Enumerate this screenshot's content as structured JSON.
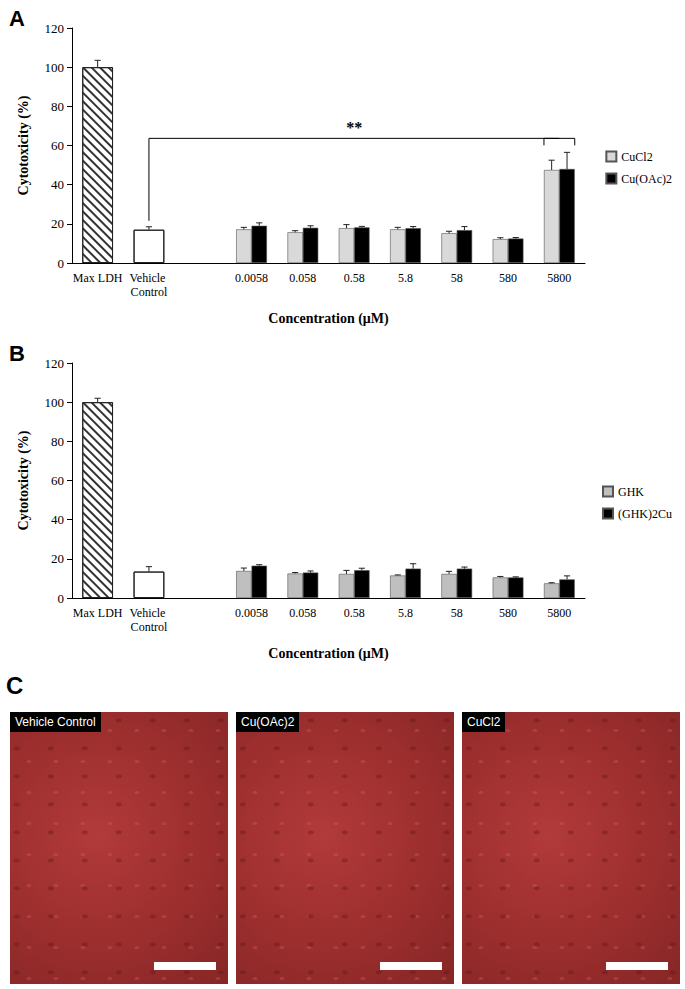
{
  "chart_data": [
    {
      "type": "bar",
      "title": "A",
      "x_label": "Concentration (μM)",
      "y_label": "Cytotoxicity (%)",
      "categories": [
        "Max LDH",
        "Vehicle Control",
        null,
        "0.0058",
        "0.058",
        "0.58",
        "5.8",
        "58",
        "580",
        "5800"
      ],
      "series": [
        {
          "color": "#ffffff",
          "values": [
            100,
            17,
            null,
            null,
            null,
            null,
            null,
            null,
            null,
            null
          ],
          "errors": [
            3.5,
            1.5,
            null,
            null,
            null,
            null,
            null,
            null,
            null,
            null
          ]
        },
        {
          "name": "CuCl2",
          "color": "#d9d9d9",
          "values": [
            null,
            null,
            null,
            17.2,
            15.7,
            17.8,
            17.2,
            15.2,
            12.2,
            47.5
          ],
          "errors": [
            null,
            null,
            null,
            1.0,
            0.8,
            1.8,
            1.0,
            1.0,
            0.7,
            5.0
          ]
        },
        {
          "name": "Cu(OAc)2",
          "color": "#000000",
          "values": [
            null,
            null,
            null,
            19.0,
            18.0,
            18.2,
            17.8,
            16.8,
            12.5,
            48.0
          ],
          "errors": [
            null,
            null,
            null,
            1.5,
            1.0,
            0.5,
            0.8,
            1.8,
            0.5,
            8.5
          ]
        }
      ],
      "ylim": [
        0,
        120
      ],
      "yticks": [
        0,
        20,
        40,
        60,
        80,
        100,
        120
      ],
      "grid": false,
      "legend": "right",
      "annotations": [
        {
          "text": "**",
          "from": "Vehicle Control",
          "to": "5800"
        }
      ]
    },
    {
      "type": "bar",
      "title": "B",
      "x_label": "Concentration (μM)",
      "y_label": "Cytotoxicity (%)",
      "categories": [
        "Max LDH",
        "Vehicle Control",
        null,
        "0.0058",
        "0.058",
        "0.58",
        "5.8",
        "58",
        "580",
        "5800"
      ],
      "series": [
        {
          "color": "#ffffff",
          "values": [
            100,
            13.5,
            null,
            null,
            null,
            null,
            null,
            null,
            null,
            null
          ],
          "errors": [
            2.0,
            2.5,
            null,
            null,
            null,
            null,
            null,
            null,
            null,
            null
          ]
        },
        {
          "name": "GHK",
          "color": "#bfbfbf",
          "values": [
            null,
            null,
            null,
            13.8,
            12.5,
            12.3,
            11.5,
            12.3,
            10.5,
            7.5
          ],
          "errors": [
            null,
            null,
            null,
            1.5,
            0.5,
            1.8,
            0.3,
            1.3,
            0.5,
            0.3
          ]
        },
        {
          "name": "(GHK)2Cu",
          "color": "#000000",
          "values": [
            null,
            null,
            null,
            16.5,
            13.0,
            14.2,
            15.0,
            15.0,
            10.5,
            9.5
          ],
          "errors": [
            null,
            null,
            null,
            0.5,
            0.8,
            1.0,
            2.5,
            0.8,
            0.3,
            1.8
          ]
        }
      ],
      "ylim": [
        0,
        120
      ],
      "yticks": [
        0,
        20,
        40,
        60,
        80,
        100,
        120
      ],
      "grid": false,
      "legend": "right"
    }
  ],
  "images": {
    "label": "C",
    "panels": [
      "Vehicle Control",
      "Cu(OAc)2",
      "CuCl2"
    ]
  }
}
